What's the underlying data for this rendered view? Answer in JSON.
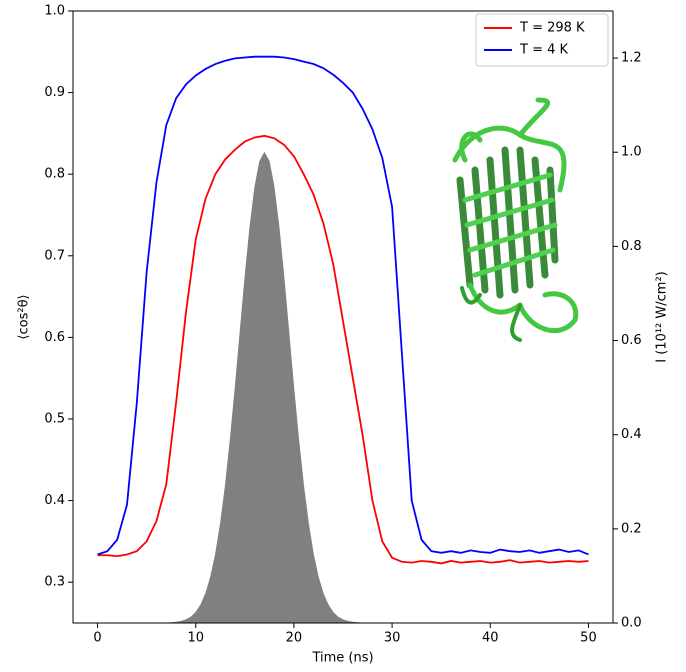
{
  "chart_data": {
    "type": "line",
    "xlabel": "Time (ns)",
    "ylabel": "⟨cos²θ⟩",
    "y2label": "I (10¹² W/cm²)",
    "xlim": [
      -2.5,
      52.5
    ],
    "xticks": [
      0,
      10,
      20,
      30,
      40,
      50
    ],
    "ylim": [
      0.25,
      1.0
    ],
    "yticks": [
      0.3,
      0.4,
      0.5,
      0.6,
      0.7,
      0.8,
      0.9,
      {
        "value": 1,
        "label": "1.0"
      }
    ],
    "y2lim": [
      0,
      1.3
    ],
    "y2ticks": [
      {
        "value": 0,
        "label": "0.0"
      },
      0.2,
      0.4,
      0.6,
      0.8,
      {
        "value": 1,
        "label": "1.0"
      },
      1.2
    ],
    "legend": "upper right",
    "x": [
      0,
      1,
      2,
      3,
      4,
      5,
      6,
      7,
      8,
      9,
      10,
      11,
      12,
      13,
      14,
      15,
      16,
      17,
      18,
      19,
      20,
      21,
      22,
      23,
      24,
      25,
      26,
      27,
      28,
      29,
      30,
      31,
      32,
      33,
      34,
      35,
      36,
      37,
      38,
      39,
      40,
      41,
      42,
      43,
      44,
      45,
      46,
      47,
      48,
      49,
      50
    ],
    "series": [
      {
        "name": "T = 298 K",
        "color": "#ff0000",
        "values": [
          0.333,
          0.333,
          0.332,
          0.334,
          0.338,
          0.35,
          0.375,
          0.42,
          0.52,
          0.63,
          0.72,
          0.77,
          0.8,
          0.818,
          0.83,
          0.84,
          0.845,
          0.847,
          0.844,
          0.836,
          0.822,
          0.8,
          0.775,
          0.74,
          0.69,
          0.62,
          0.55,
          0.48,
          0.4,
          0.35,
          0.33,
          0.325,
          0.324,
          0.326,
          0.325,
          0.323,
          0.326,
          0.324,
          0.325,
          0.326,
          0.324,
          0.325,
          0.327,
          0.324,
          0.325,
          0.326,
          0.324,
          0.325,
          0.326,
          0.325,
          0.326
        ]
      },
      {
        "name": "T = 4 K",
        "color": "#0000ff",
        "values": [
          0.334,
          0.338,
          0.352,
          0.395,
          0.52,
          0.68,
          0.79,
          0.86,
          0.893,
          0.91,
          0.921,
          0.929,
          0.935,
          0.939,
          0.942,
          0.943,
          0.944,
          0.944,
          0.944,
          0.943,
          0.941,
          0.938,
          0.935,
          0.93,
          0.922,
          0.912,
          0.9,
          0.88,
          0.855,
          0.82,
          0.76,
          0.58,
          0.4,
          0.352,
          0.338,
          0.336,
          0.338,
          0.336,
          0.339,
          0.337,
          0.336,
          0.34,
          0.338,
          0.337,
          0.339,
          0.336,
          0.338,
          0.34,
          0.337,
          0.339,
          0.334
        ]
      },
      {
        "color": "#808080",
        "axis": "y2",
        "fill": true,
        "x": [
          7,
          7.5,
          8,
          8.5,
          9,
          9.5,
          10,
          10.5,
          11,
          11.5,
          12,
          12.5,
          13,
          13.5,
          14,
          14.5,
          15,
          15.5,
          16,
          16.5,
          17,
          17.5,
          18,
          18.5,
          19,
          19.5,
          20,
          20.5,
          21,
          21.5,
          22,
          22.5,
          23,
          23.5,
          24,
          24.5,
          25,
          25.5,
          26,
          26.5,
          27
        ],
        "values": [
          0.0005,
          0.001,
          0.002,
          0.004,
          0.0073,
          0.013,
          0.023,
          0.039,
          0.063,
          0.098,
          0.146,
          0.211,
          0.292,
          0.39,
          0.5,
          0.618,
          0.735,
          0.841,
          0.926,
          0.981,
          1,
          0.981,
          0.926,
          0.841,
          0.735,
          0.618,
          0.5,
          0.39,
          0.292,
          0.211,
          0.146,
          0.098,
          0.063,
          0.039,
          0.023,
          0.013,
          0.0073,
          0.004,
          0.002,
          0.001,
          0.0005
        ]
      }
    ]
  }
}
